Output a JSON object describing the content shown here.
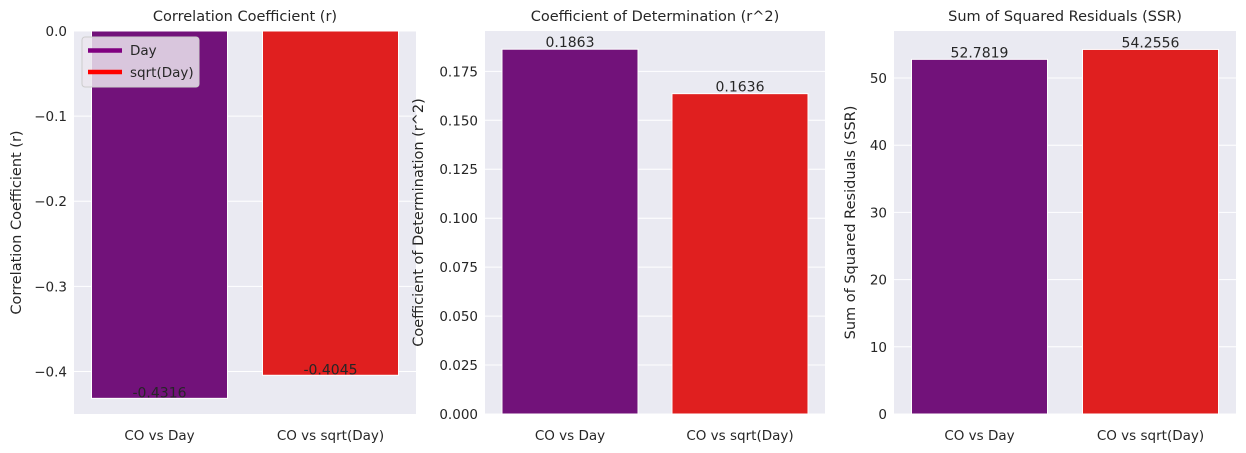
{
  "chart_data": [
    {
      "type": "bar",
      "title": "Correlation Coefficient (r)",
      "xlabel": "",
      "ylabel": "Correlation Coefficient (r)",
      "categories": [
        "CO vs Day",
        "CO vs sqrt(Day)"
      ],
      "values": [
        -0.4316,
        -0.4045
      ],
      "value_labels": [
        "-0.4316",
        "-0.4045"
      ],
      "colors": [
        "#72127a",
        "#e01f1f"
      ],
      "ylim": [
        -0.45,
        0.0
      ],
      "yticks": [
        -0.4,
        -0.3,
        -0.2,
        -0.1,
        0.0
      ],
      "ytick_labels": [
        "−0.4",
        "−0.3",
        "−0.2",
        "−0.1",
        "0.0"
      ],
      "grid": true,
      "legend": {
        "placement": "top-left",
        "entries": [
          {
            "label": "Day",
            "color": "#800080"
          },
          {
            "label": "sqrt(Day)",
            "color": "#ff0000"
          }
        ]
      }
    },
    {
      "type": "bar",
      "title": "Coefficient of Determination (r^2)",
      "xlabel": "",
      "ylabel": "Coefficient of Determination (r^2)",
      "categories": [
        "CO vs Day",
        "CO vs sqrt(Day)"
      ],
      "values": [
        0.1863,
        0.1636
      ],
      "value_labels": [
        "0.1863",
        "0.1636"
      ],
      "colors": [
        "#72127a",
        "#e01f1f"
      ],
      "ylim": [
        0.0,
        0.1956
      ],
      "yticks": [
        0.0,
        0.025,
        0.05,
        0.075,
        0.1,
        0.125,
        0.15,
        0.175
      ],
      "ytick_labels": [
        "0.000",
        "0.025",
        "0.050",
        "0.075",
        "0.100",
        "0.125",
        "0.150",
        "0.175"
      ],
      "grid": true
    },
    {
      "type": "bar",
      "title": "Sum of Squared Residuals (SSR)",
      "xlabel": "",
      "ylabel": "Sum of Squared Residuals (SSR)",
      "categories": [
        "CO vs Day",
        "CO vs sqrt(Day)"
      ],
      "values": [
        52.7819,
        54.2556
      ],
      "value_labels": [
        "52.7819",
        "54.2556"
      ],
      "colors": [
        "#72127a",
        "#e01f1f"
      ],
      "ylim": [
        0,
        57
      ],
      "yticks": [
        0,
        10,
        20,
        30,
        40,
        50
      ],
      "ytick_labels": [
        "0",
        "10",
        "20",
        "30",
        "40",
        "50"
      ],
      "grid": true
    }
  ]
}
